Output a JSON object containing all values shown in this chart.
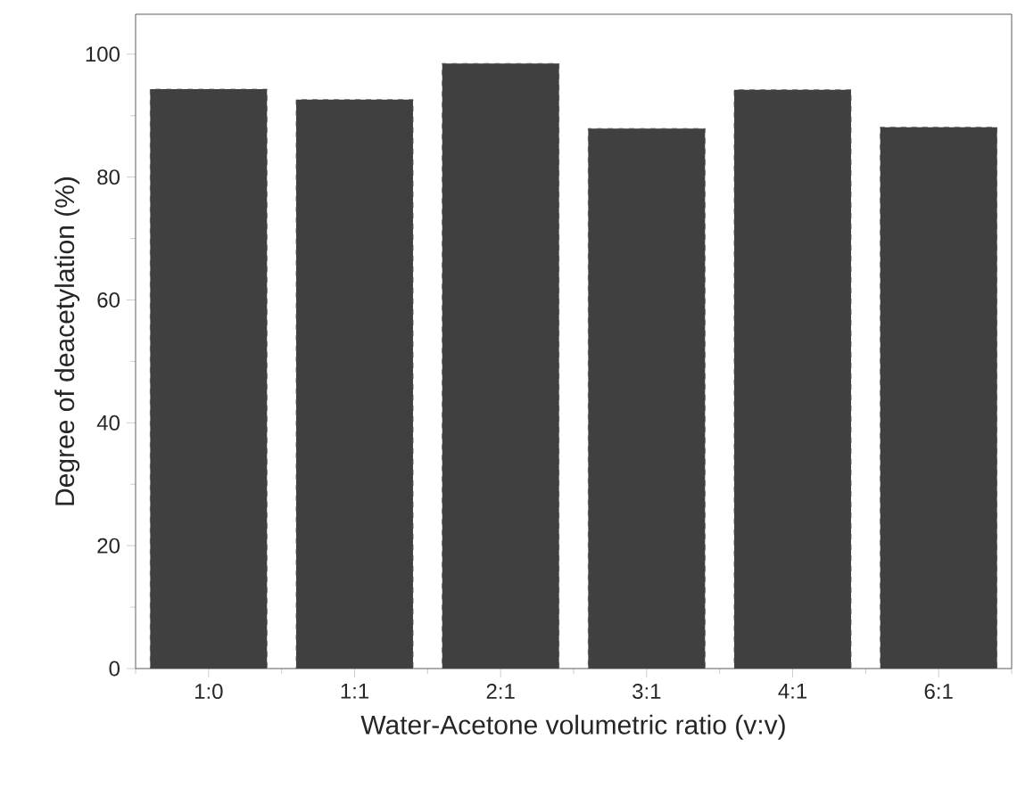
{
  "chart_data": {
    "type": "bar",
    "xlabel": "Water-Acetone volumetric ratio (v:v)",
    "ylabel": "Degree of deacetylation (%)",
    "categories": [
      "1:0",
      "1:1",
      "2:1",
      "3:1",
      "4:1",
      "6:1"
    ],
    "values": [
      94.3,
      92.6,
      98.5,
      87.9,
      94.2,
      88.1
    ],
    "color": "#404040",
    "ylim": [
      0,
      106.5
    ],
    "yticks": [
      0,
      20,
      40,
      60,
      80,
      100
    ],
    "grid": false
  }
}
